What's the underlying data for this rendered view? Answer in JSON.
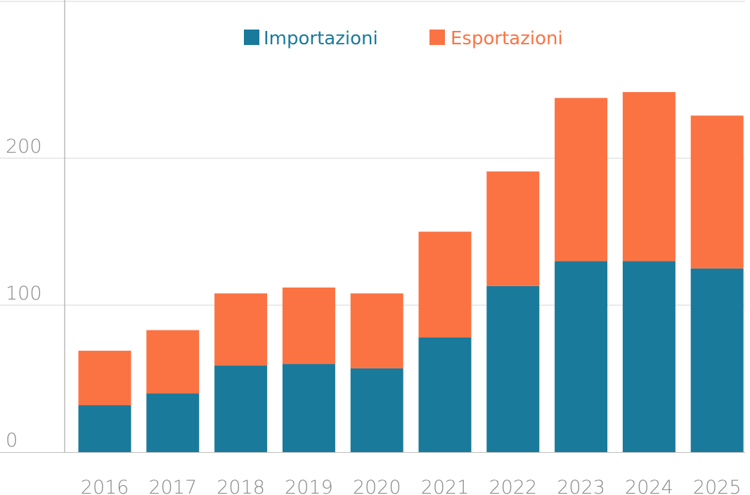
{
  "chart_data": {
    "type": "bar",
    "stacked": true,
    "categories": [
      "2016",
      "2017",
      "2018",
      "2019",
      "2020",
      "2021",
      "2022",
      "2023",
      "2024",
      "2025"
    ],
    "series": [
      {
        "name": "Importazioni",
        "color": "#1a7a9b",
        "values": [
          32,
          40,
          59,
          60,
          57,
          78,
          113,
          130,
          130,
          125
        ]
      },
      {
        "name": "Esportazioni",
        "color": "#fb7343",
        "values": [
          37,
          43,
          49,
          52,
          51,
          72,
          78,
          111,
          115,
          104
        ]
      }
    ],
    "yticks": [
      0,
      100,
      200
    ],
    "ylim": [
      0,
      300
    ],
    "grid": true,
    "legend": "top"
  }
}
